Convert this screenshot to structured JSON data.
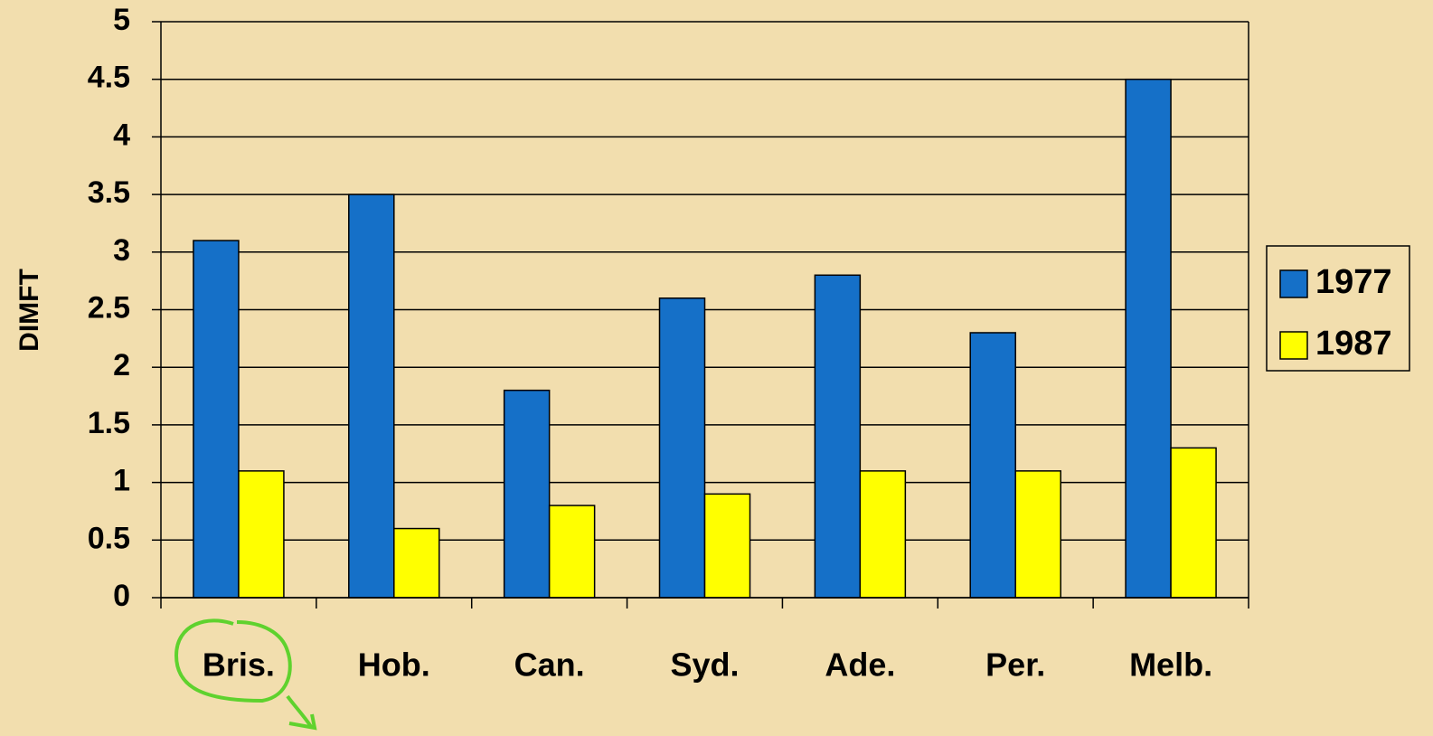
{
  "chart_data": {
    "type": "bar",
    "y_label": "DIMFT",
    "categories": [
      "Bris.",
      "Hob.",
      "Can.",
      "Syd.",
      "Ade.",
      "Per.",
      "Melb."
    ],
    "series": [
      {
        "name": "1977",
        "color": "#1570c8",
        "values": [
          3.1,
          3.5,
          1.8,
          2.6,
          2.8,
          2.3,
          4.5
        ]
      },
      {
        "name": "1987",
        "color": "#ffff00",
        "values": [
          1.1,
          0.6,
          0.8,
          0.9,
          1.1,
          1.1,
          1.3
        ]
      }
    ],
    "ylim": [
      0,
      5
    ],
    "yticks": [
      0,
      0.5,
      1,
      1.5,
      2,
      2.5,
      3,
      3.5,
      4,
      4.5,
      5
    ],
    "grid": true,
    "legend": "right"
  }
}
